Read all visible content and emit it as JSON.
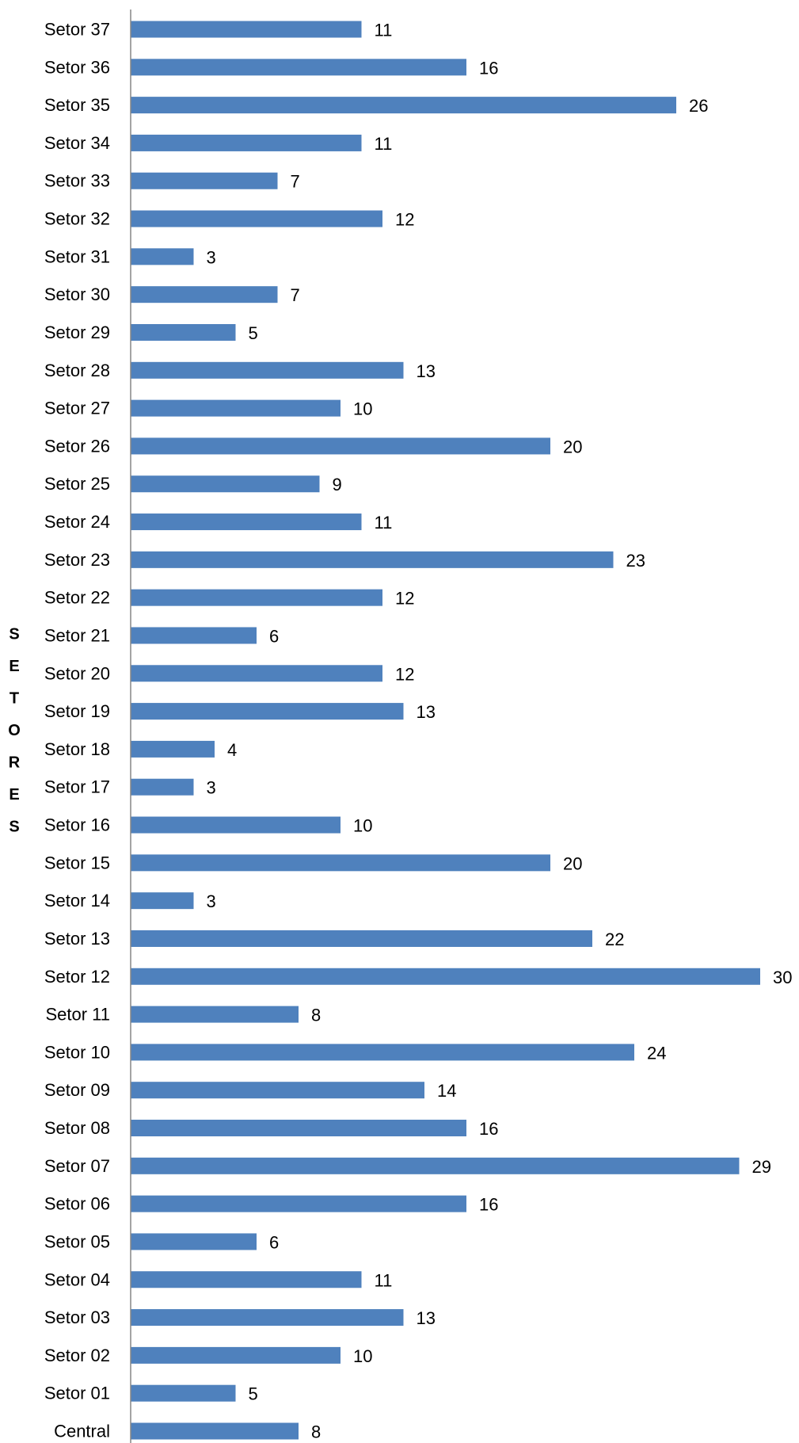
{
  "chart_data": {
    "type": "bar",
    "orientation": "horizontal",
    "title": "",
    "xlabel": "",
    "ylabel": "SETORES",
    "xlim": [
      0,
      30
    ],
    "grid": false,
    "legend": "none",
    "bar_color": "#4f81bd",
    "categories": [
      "Setor 37",
      "Setor 36",
      "Setor 35",
      "Setor 34",
      "Setor 33",
      "Setor 32",
      "Setor 31",
      "Setor 30",
      "Setor 29",
      "Setor 28",
      "Setor 27",
      "Setor 26",
      "Setor 25",
      "Setor 24",
      "Setor 23",
      "Setor 22",
      "Setor 21",
      "Setor 20",
      "Setor 19",
      "Setor 18",
      "Setor 17",
      "Setor 16",
      "Setor 15",
      "Setor 14",
      "Setor 13",
      "Setor 12",
      "Setor 11",
      "Setor 10",
      "Setor 09",
      "Setor 08",
      "Setor 07",
      "Setor 06",
      "Setor 05",
      "Setor 04",
      "Setor 03",
      "Setor 02",
      "Setor 01",
      "Central"
    ],
    "values": [
      11,
      16,
      26,
      11,
      7,
      12,
      3,
      7,
      5,
      13,
      10,
      20,
      9,
      11,
      23,
      12,
      6,
      12,
      13,
      4,
      3,
      10,
      20,
      3,
      22,
      30,
      8,
      24,
      14,
      16,
      29,
      16,
      6,
      11,
      13,
      10,
      5,
      8
    ]
  }
}
